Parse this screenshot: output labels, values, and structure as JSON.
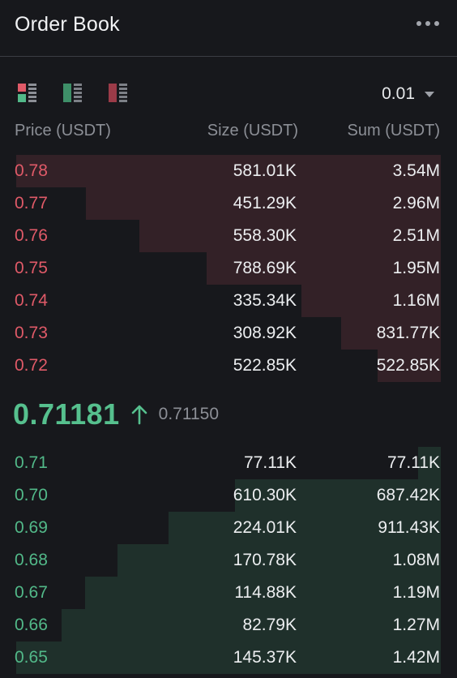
{
  "header": {
    "title": "Order Book"
  },
  "tick_size": {
    "value": "0.01"
  },
  "columns": {
    "price": "Price (USDT)",
    "size": "Size (USDT)",
    "sum": "Sum (USDT)"
  },
  "asks": [
    {
      "price": "0.78",
      "size": "581.01K",
      "sum": "3.54M",
      "depth": 1.0
    },
    {
      "price": "0.77",
      "size": "451.29K",
      "sum": "2.96M",
      "depth": 0.836
    },
    {
      "price": "0.76",
      "size": "558.30K",
      "sum": "2.51M",
      "depth": 0.709
    },
    {
      "price": "0.75",
      "size": "788.69K",
      "sum": "1.95M",
      "depth": 0.551
    },
    {
      "price": "0.74",
      "size": "335.34K",
      "sum": "1.16M",
      "depth": 0.328
    },
    {
      "price": "0.73",
      "size": "308.92K",
      "sum": "831.77K",
      "depth": 0.235
    },
    {
      "price": "0.72",
      "size": "522.85K",
      "sum": "522.85K",
      "depth": 0.148
    }
  ],
  "last_trade": {
    "price": "0.71181",
    "direction": "up",
    "mark_price": "0.71150"
  },
  "bids": [
    {
      "price": "0.71",
      "size": "77.11K",
      "sum": "77.11K",
      "depth": 0.054
    },
    {
      "price": "0.70",
      "size": "610.30K",
      "sum": "687.42K",
      "depth": 0.484
    },
    {
      "price": "0.69",
      "size": "224.01K",
      "sum": "911.43K",
      "depth": 0.642
    },
    {
      "price": "0.68",
      "size": "170.78K",
      "sum": "1.08M",
      "depth": 0.761
    },
    {
      "price": "0.67",
      "size": "114.88K",
      "sum": "1.19M",
      "depth": 0.838
    },
    {
      "price": "0.66",
      "size": "82.79K",
      "sum": "1.27M",
      "depth": 0.894
    },
    {
      "price": "0.65",
      "size": "145.37K",
      "sum": "1.42M",
      "depth": 1.0
    }
  ],
  "colors": {
    "ask": "#e05a68",
    "bid": "#52b989",
    "ask_bar": "#332127",
    "bid_bar": "#1f302b",
    "background": "#17181c"
  },
  "icons": {
    "more": "more-horizontal-icon",
    "view_both": "book-both-sides-icon",
    "view_bids": "book-bids-only-icon",
    "view_asks": "book-asks-only-icon",
    "tick": "caret-down-icon",
    "trend": "arrow-up-icon"
  }
}
